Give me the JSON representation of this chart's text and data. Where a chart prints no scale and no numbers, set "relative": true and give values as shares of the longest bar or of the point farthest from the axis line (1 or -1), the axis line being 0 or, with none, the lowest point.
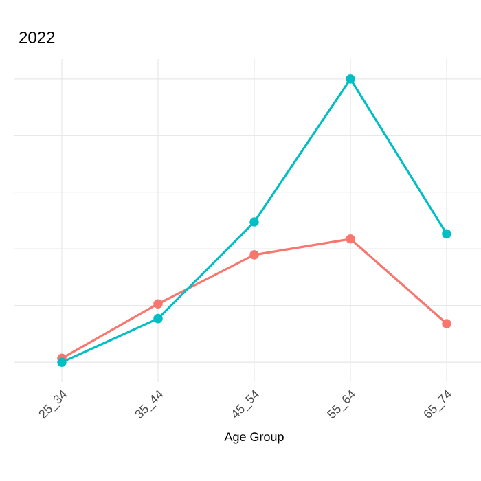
{
  "chart_data": {
    "type": "line",
    "title": "2022",
    "xlabel": "Age Group",
    "relative": true,
    "categories": [
      "25_34",
      "35_44",
      "45_54",
      "55_64",
      "65_74"
    ],
    "series": [
      {
        "color": "#f8766d",
        "values": [
          0.014,
          0.206,
          0.379,
          0.435,
          0.136
        ]
      },
      {
        "color": "#00bfc4",
        "values": [
          0,
          0.154,
          0.495,
          1,
          0.453
        ]
      }
    ],
    "grid": true,
    "marker": "circle",
    "line_style": "solid"
  }
}
